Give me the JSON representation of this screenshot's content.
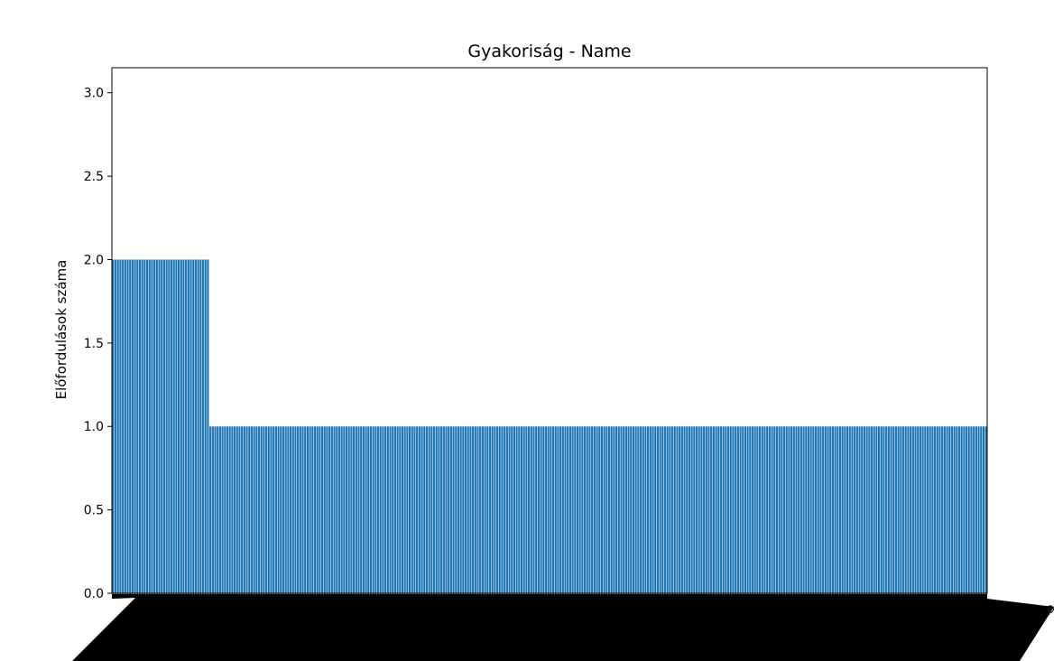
{
  "chart_data": {
    "type": "bar",
    "title": "Gyakoriság - Name",
    "xlabel": "",
    "ylabel": "Előfordulások száma",
    "ylim": [
      0,
      3.15
    ],
    "yticks": [
      "0.0",
      "0.5",
      "1.0",
      "1.5",
      "2.0",
      "2.5",
      "3.0"
    ],
    "bar_color": "#1f77b4",
    "grid": false,
    "last_category_label_fragment": "Dimitrios Tsoumas PhD",
    "series": [
      {
        "groups": [
          {
            "value": 2,
            "count": 40
          },
          {
            "value": 1,
            "count": 320
          }
        ]
      }
    ]
  }
}
